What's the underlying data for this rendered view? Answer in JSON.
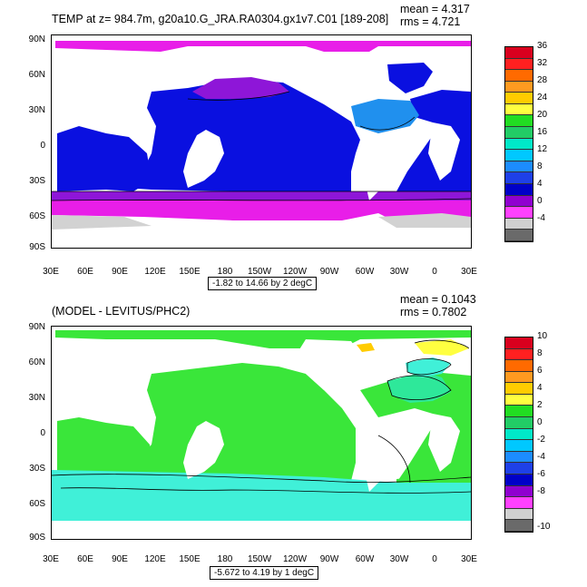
{
  "panel1": {
    "title": "TEMP at z= 984.7m, g20a10.G_JRA.RA0304.gx1v7.C01 [189-208]",
    "mean": "mean = 4.317",
    "rms": "rms = 4.721",
    "info": "-1.82 to 14.66 by 2 degC",
    "colorbar_labels": [
      "36",
      "32",
      "28",
      "24",
      "20",
      "16",
      "12",
      "8",
      "4",
      "0",
      "-4"
    ],
    "colorbar_colors": [
      "#d9001e",
      "#ff2020",
      "#ff6a00",
      "#ff9a20",
      "#ffcc00",
      "#ffff40",
      "#22dd22",
      "#22cc66",
      "#00e8c8",
      "#00c8ff",
      "#1c8cff",
      "#1e40e8",
      "#0000c8",
      "#9000d0",
      "#ff40ff",
      "#d0d0d0",
      "#6a6a6a"
    ]
  },
  "panel2": {
    "title": "(MODEL - LEVITUS/PHC2)",
    "mean": "mean = 0.1043",
    "rms": "rms = 0.7802",
    "info": "-5.672 to 4.19 by 1 degC",
    "colorbar_labels": [
      "10",
      "8",
      "6",
      "4",
      "2",
      "0",
      "-2",
      "-4",
      "-6",
      "-8",
      "-10"
    ],
    "colorbar_colors": [
      "#d9001e",
      "#ff2020",
      "#ff6a00",
      "#ff9a20",
      "#ffcc00",
      "#ffff40",
      "#22dd22",
      "#22cc66",
      "#00e8c8",
      "#00c8ff",
      "#1c8cff",
      "#1e40e8",
      "#0000c8",
      "#9000d0",
      "#ff40ff",
      "#d0d0d0",
      "#6a6a6a"
    ]
  },
  "lat_labels": [
    "90N",
    "60N",
    "30N",
    "0",
    "30S",
    "60S",
    "90S"
  ],
  "lon_labels": [
    "30E",
    "60E",
    "90E",
    "120E",
    "150E",
    "180",
    "150W",
    "120W",
    "90W",
    "60W",
    "30W",
    "0",
    "30E"
  ],
  "colors": {
    "deep_blue": "#0a10e0",
    "light_blue": "#2090ee",
    "purple": "#8e16d8",
    "magenta": "#e81ee8",
    "grey": "#d2d2d2",
    "green": "#3ae63a",
    "light_green": "#2ee89a",
    "cyan": "#40f0d8"
  }
}
